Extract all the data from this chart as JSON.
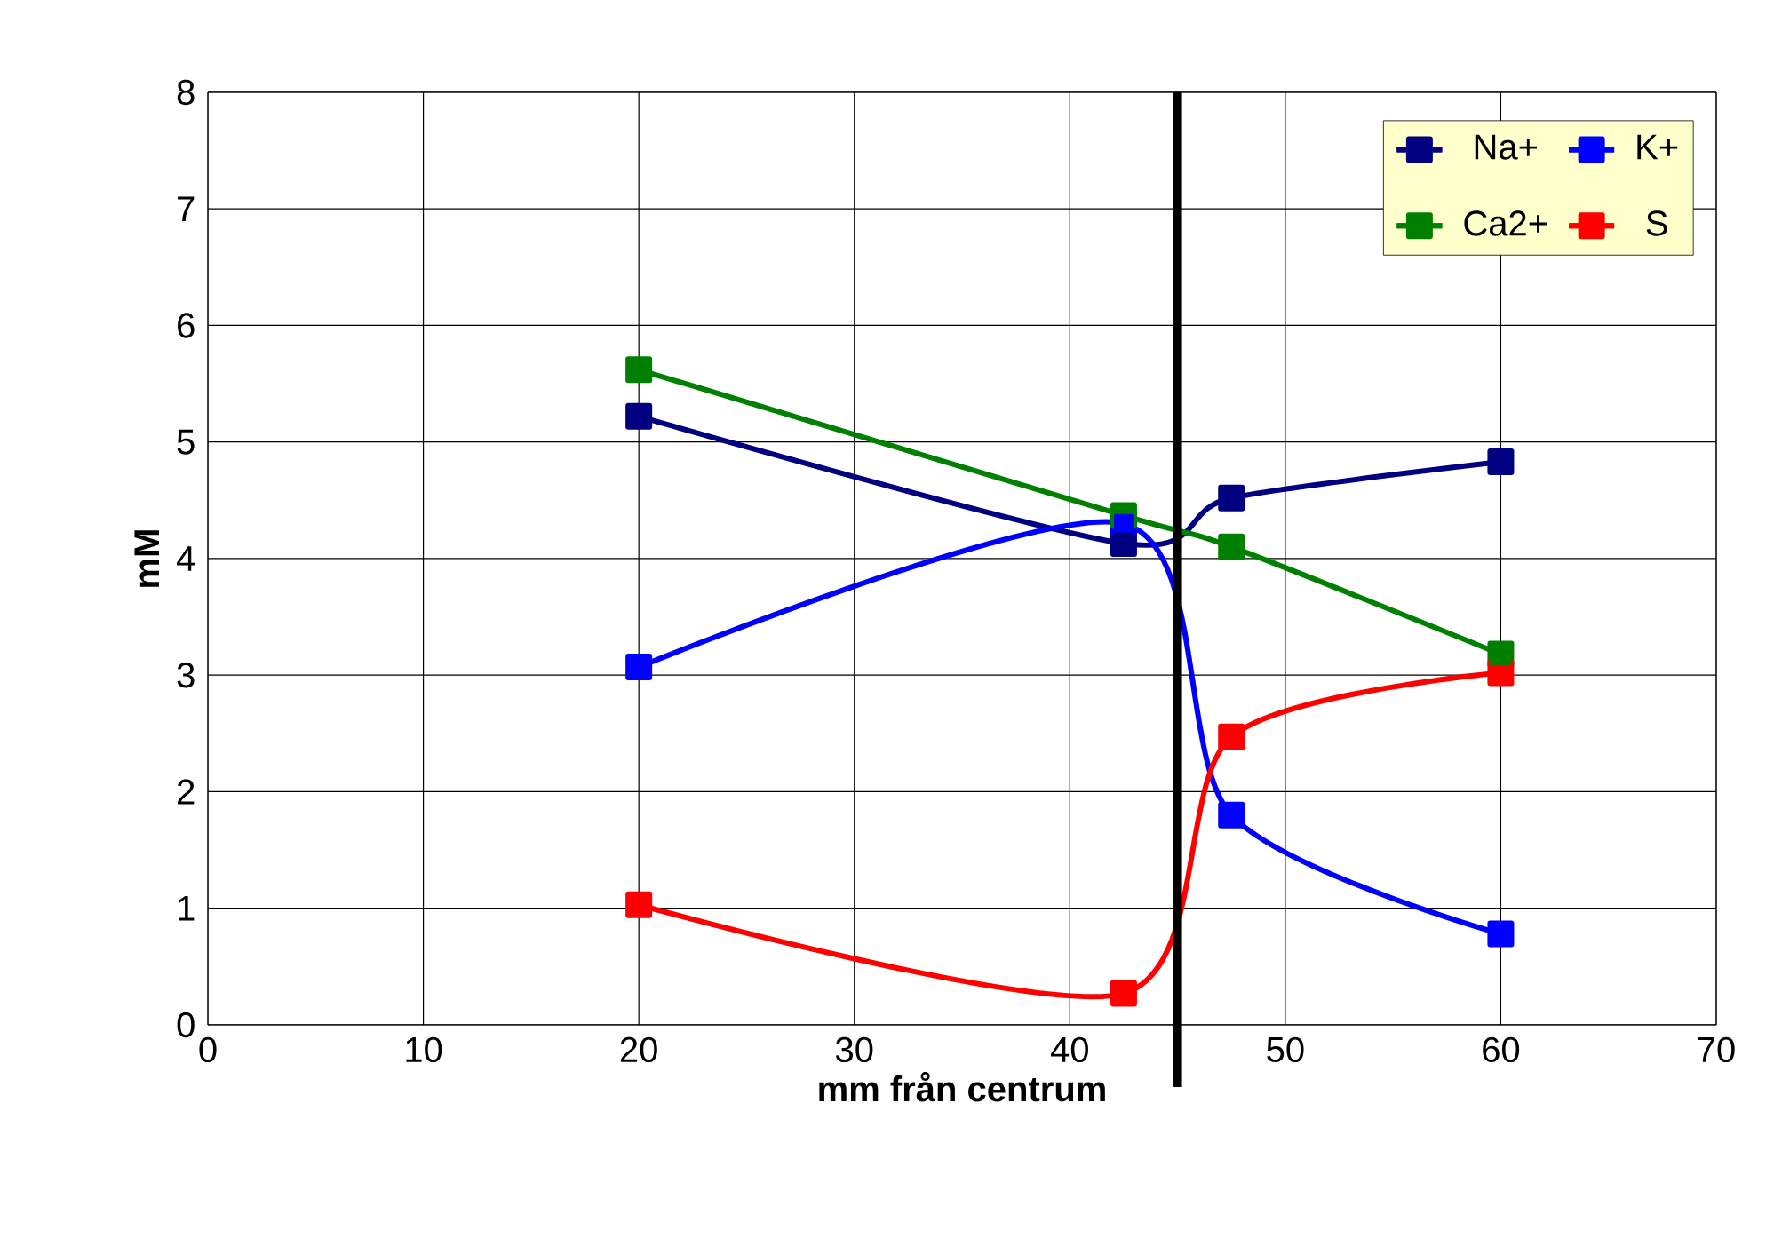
{
  "chart_data": {
    "type": "line",
    "xlabel": "mm från centrum",
    "ylabel": "mM",
    "x": [
      20,
      42.5,
      47.5,
      60
    ],
    "series": [
      {
        "name": "Na+",
        "color": "#000080",
        "values": [
          5.22,
          4.13,
          4.52,
          4.83
        ]
      },
      {
        "name": "K+",
        "color": "#0000FF",
        "values": [
          3.07,
          4.3,
          1.8,
          0.78
        ]
      },
      {
        "name": "Ca2+",
        "color": "#008000",
        "values": [
          5.62,
          4.37,
          4.1,
          3.18
        ]
      },
      {
        "name": "S",
        "color": "#FF0000",
        "values": [
          1.03,
          0.27,
          2.47,
          3.02
        ]
      }
    ],
    "xlim": [
      0,
      70
    ],
    "ylim": [
      0,
      8
    ],
    "xticks": [
      0,
      10,
      20,
      30,
      40,
      50,
      60,
      70
    ],
    "yticks": [
      0,
      1,
      2,
      3,
      4,
      5,
      6,
      7,
      8
    ],
    "ref_lines": [
      {
        "axis": "x",
        "value": 45,
        "color": "#000000"
      }
    ],
    "grid": true,
    "legend": "top right",
    "marker": "square",
    "line_style": "solid"
  }
}
